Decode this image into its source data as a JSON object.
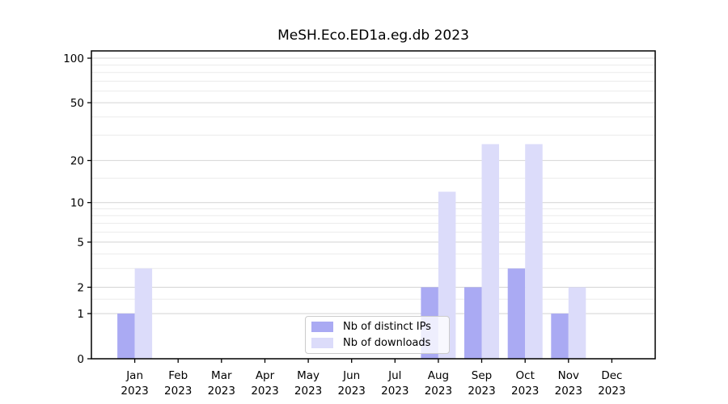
{
  "chart_data": {
    "type": "bar",
    "title": "MeSH.Eco.ED1a.eg.db 2023",
    "categories": [
      "Jan",
      "Feb",
      "Mar",
      "Apr",
      "May",
      "Jun",
      "Jul",
      "Aug",
      "Sep",
      "Oct",
      "Nov",
      "Dec"
    ],
    "category_year": "2023",
    "series": [
      {
        "name": "Nb of distinct IPs",
        "color": "#aaaaf3",
        "values": [
          1,
          0,
          0,
          0,
          0,
          0,
          0,
          2,
          2,
          3,
          1,
          0
        ]
      },
      {
        "name": "Nb of downloads",
        "color": "#dcdcfa",
        "values": [
          3,
          0,
          0,
          0,
          0,
          0,
          0,
          12,
          26,
          26,
          2,
          0
        ]
      }
    ],
    "yscale": "log1p",
    "yticks": [
      0,
      1,
      2,
      5,
      10,
      20,
      50,
      100
    ],
    "minor_gridlines": [
      1.5,
      3,
      4,
      6,
      7,
      8,
      9,
      15,
      30,
      40,
      60,
      70,
      80,
      90
    ],
    "ylim_top": 112,
    "xlim": [
      -1,
      12
    ],
    "grid": "on",
    "legend_position": "lower center"
  },
  "colors": {
    "bar_dark": "#aaaaf3",
    "bar_light": "#dcdcfa",
    "grid_major": "#d4d4d4",
    "grid_minor": "#ebebeb",
    "spine": "#000000",
    "tick": "#000000",
    "legend_border": "#cccccc"
  }
}
